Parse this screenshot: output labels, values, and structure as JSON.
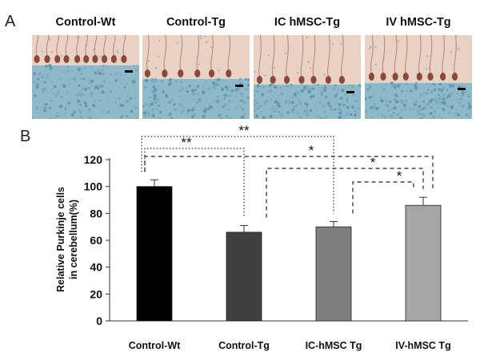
{
  "panel_a": {
    "letter": "A",
    "panels": [
      {
        "label": "Control-Wt"
      },
      {
        "label": "Control-Tg"
      },
      {
        "label": "IC hMSC-Tg"
      },
      {
        "label": "IV hMSC-Tg"
      }
    ]
  },
  "panel_b": {
    "letter": "B"
  },
  "chart_data": {
    "type": "bar",
    "categories": [
      "Control-Wt",
      "Control-Tg",
      "IC-hMSC Tg",
      "IV-hMSC Tg"
    ],
    "values": [
      100,
      66,
      70,
      86
    ],
    "errors": [
      5,
      5,
      4,
      6
    ],
    "bar_colors": [
      "#000000",
      "#404040",
      "#7f7f7f",
      "#a6a6a6"
    ],
    "ylabel_lines": [
      "Relative Purkinje cells",
      "in cerebellum(%)"
    ],
    "ylim": [
      0,
      120
    ],
    "yticks": [
      "0",
      "20",
      "40",
      "60",
      "80",
      "100",
      "120"
    ],
    "grid": false,
    "significance": [
      {
        "from": 0,
        "to": 2,
        "label": "**",
        "style": "dotted"
      },
      {
        "from": 0,
        "to": 1,
        "label": "**",
        "style": "dotted"
      },
      {
        "from": 0,
        "to": 3,
        "label": "*",
        "style": "dashed"
      },
      {
        "from": 1,
        "to": 3,
        "label": "*",
        "style": "dashed"
      },
      {
        "from": 2,
        "to": 3,
        "label": "*",
        "style": "dashed"
      }
    ]
  }
}
